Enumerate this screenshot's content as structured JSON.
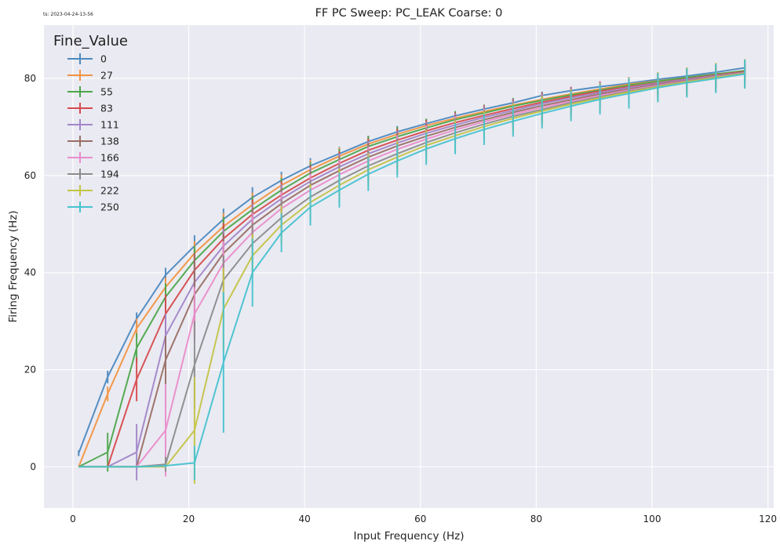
{
  "timestamp": "ts: 2023-04-24-13-56",
  "chart_data": {
    "type": "line",
    "title": "FF PC Sweep: PC_LEAK Coarse: 0",
    "xlabel": "Input Frequency (Hz)",
    "ylabel": "Firing Frequency (Hz)",
    "xlim": [
      -5,
      121
    ],
    "ylim": [
      -8.5,
      91
    ],
    "xticks": [
      0,
      20,
      40,
      60,
      80,
      100,
      120
    ],
    "yticks": [
      0,
      20,
      40,
      60,
      80
    ],
    "grid": true,
    "legend_title": "Fine_Value",
    "legend_position": "top-left",
    "x": [
      1,
      6,
      11,
      16,
      21,
      26,
      31,
      36,
      41,
      46,
      51,
      56,
      61,
      66,
      71,
      76,
      81,
      86,
      91,
      96,
      101,
      106,
      111,
      116
    ],
    "series": [
      {
        "name": "0",
        "color": "#4c8ac0",
        "values": [
          2.8,
          18.5,
          30.5,
          39.5,
          45.5,
          51.0,
          55.5,
          59.0,
          62.0,
          64.5,
          67.0,
          69.0,
          70.7,
          72.3,
          73.7,
          75.0,
          76.5,
          77.5,
          78.3,
          79.0,
          79.8,
          80.5,
          81.3,
          82.2
        ],
        "errors": [
          0.6,
          1.3,
          1.3,
          1.5,
          2.2,
          2.2,
          2.1,
          1.8,
          1.6,
          1.4,
          1.2,
          1.2,
          1.0,
          0.9,
          0.9,
          0.8,
          0.8,
          0.7,
          0.7,
          0.6,
          0.6,
          0.6,
          0.5,
          0.5
        ]
      },
      {
        "name": "27",
        "color": "#f39441",
        "values": [
          0,
          15.0,
          28.5,
          37.0,
          44.0,
          49.5,
          54.0,
          58.0,
          61.2,
          64.0,
          66.5,
          68.5,
          70.3,
          71.8,
          73.2,
          74.5,
          75.7,
          76.8,
          77.8,
          78.8,
          79.5,
          80.2,
          80.9,
          81.5
        ],
        "errors": [
          0,
          1.5,
          2.0,
          2.0,
          2.5,
          2.8,
          2.5,
          2.2,
          2.0,
          1.8,
          1.6,
          1.5,
          1.4,
          1.3,
          1.2,
          1.1,
          1.1,
          1.0,
          1.0,
          0.9,
          0.9,
          0.9,
          0.9,
          0.9
        ]
      },
      {
        "name": "55",
        "color": "#4ca74c",
        "values": [
          0,
          3.0,
          24.5,
          35.0,
          42.5,
          48.5,
          53.0,
          57.0,
          60.5,
          63.3,
          66.0,
          68.0,
          69.8,
          71.5,
          72.9,
          74.3,
          75.5,
          76.6,
          77.6,
          78.6,
          79.4,
          80.2,
          80.9,
          81.6
        ],
        "errors": [
          0,
          4.0,
          3.0,
          2.8,
          3.0,
          3.0,
          2.8,
          2.5,
          2.3,
          2.2,
          2.1,
          2.0,
          1.9,
          1.8,
          1.7,
          1.7,
          1.6,
          1.6,
          1.5,
          1.5,
          1.4,
          1.4,
          1.4,
          1.4
        ]
      },
      {
        "name": "83",
        "color": "#d64b4d",
        "values": [
          0,
          0,
          18.0,
          31.5,
          40.5,
          47.0,
          52.0,
          56.0,
          59.5,
          62.5,
          65.2,
          67.3,
          69.2,
          70.9,
          72.4,
          73.8,
          75.1,
          76.3,
          77.4,
          78.3,
          79.1,
          79.9,
          80.7,
          81.4
        ],
        "errors": [
          0,
          0,
          4.5,
          4.0,
          3.5,
          3.2,
          3.0,
          2.8,
          2.6,
          2.5,
          2.4,
          2.3,
          2.2,
          2.1,
          2.1,
          2.0,
          2.0,
          2.0,
          2.0,
          1.9,
          1.9,
          1.9,
          1.9,
          1.9
        ]
      },
      {
        "name": "111",
        "color": "#a285c9",
        "values": [
          0,
          0,
          3.0,
          27.0,
          38.0,
          45.5,
          51.0,
          55.2,
          58.8,
          61.8,
          64.5,
          66.7,
          68.7,
          70.4,
          72.0,
          73.4,
          74.8,
          76.0,
          77.1,
          78.1,
          79.0,
          79.8,
          80.6,
          81.3
        ],
        "errors": [
          0,
          0,
          5.8,
          4.5,
          4.0,
          3.5,
          3.2,
          3.0,
          2.8,
          2.7,
          2.6,
          2.5,
          2.4,
          2.4,
          2.3,
          2.3,
          2.2,
          2.2,
          2.2,
          2.2,
          2.1,
          2.1,
          2.1,
          2.1
        ]
      },
      {
        "name": "138",
        "color": "#9a6f66",
        "values": [
          0,
          0,
          0,
          22.0,
          35.5,
          44.0,
          49.8,
          54.2,
          58.0,
          61.0,
          63.8,
          66.1,
          68.1,
          69.9,
          71.5,
          73.0,
          74.4,
          75.6,
          76.8,
          77.8,
          78.8,
          79.6,
          80.5,
          81.3
        ],
        "errors": [
          0,
          0,
          0,
          5.0,
          8.5,
          4.0,
          3.5,
          3.2,
          3.0,
          2.9,
          2.8,
          2.7,
          2.6,
          2.6,
          2.5,
          2.5,
          2.5,
          2.4,
          2.4,
          2.4,
          2.4,
          2.3,
          2.3,
          2.3
        ]
      },
      {
        "name": "166",
        "color": "#ea8dcb",
        "values": [
          0,
          0,
          0,
          7.5,
          31.5,
          42.0,
          48.3,
          53.2,
          57.0,
          60.2,
          63.0,
          65.4,
          67.5,
          69.4,
          71.1,
          72.6,
          74.0,
          75.3,
          76.5,
          77.6,
          78.6,
          79.5,
          80.4,
          81.2
        ],
        "errors": [
          0,
          0,
          0,
          9.5,
          5.5,
          4.5,
          4.0,
          3.5,
          3.3,
          3.1,
          3.0,
          2.9,
          2.8,
          2.8,
          2.7,
          2.7,
          2.7,
          2.6,
          2.6,
          2.6,
          2.6,
          2.6,
          2.6,
          2.6
        ]
      },
      {
        "name": "194",
        "color": "#8c8c8c",
        "values": [
          0,
          0,
          0,
          0.5,
          21.0,
          38.5,
          46.0,
          51.3,
          55.6,
          59.0,
          62.0,
          64.5,
          66.8,
          68.8,
          70.6,
          72.2,
          73.6,
          75.0,
          76.2,
          77.4,
          78.4,
          79.4,
          80.3,
          81.1
        ],
        "errors": [
          0,
          0,
          0,
          1.5,
          9.0,
          5.0,
          4.2,
          3.8,
          3.5,
          3.3,
          3.2,
          3.1,
          3.0,
          3.0,
          2.9,
          2.9,
          2.9,
          2.8,
          2.8,
          2.8,
          2.8,
          2.8,
          2.8,
          2.8
        ]
      },
      {
        "name": "222",
        "color": "#c4c446",
        "values": [
          0,
          0,
          0,
          0,
          7.5,
          32.5,
          43.5,
          49.8,
          54.5,
          58.0,
          61.2,
          63.8,
          66.2,
          68.2,
          70.1,
          71.8,
          73.3,
          74.7,
          76.0,
          77.2,
          78.3,
          79.3,
          80.2,
          81.0
        ],
        "errors": [
          0,
          0,
          0,
          0,
          11.0,
          8.5,
          4.5,
          4.0,
          3.7,
          3.5,
          3.4,
          3.3,
          3.2,
          3.2,
          3.1,
          3.1,
          3.1,
          3.0,
          3.0,
          3.0,
          3.0,
          3.0,
          3.0,
          3.0
        ]
      },
      {
        "name": "250",
        "color": "#47c3d0",
        "values": [
          0,
          0,
          0,
          0.2,
          0.8,
          21.5,
          40.0,
          48.2,
          53.5,
          57.0,
          60.3,
          63.0,
          65.5,
          67.6,
          69.5,
          71.2,
          72.8,
          74.3,
          75.7,
          76.9,
          78.1,
          79.1,
          80.0,
          80.9
        ],
        "errors": [
          0,
          0,
          0,
          0.3,
          3.5,
          14.5,
          7.0,
          4.0,
          3.8,
          3.6,
          3.5,
          3.4,
          3.3,
          3.2,
          3.2,
          3.2,
          3.1,
          3.1,
          3.1,
          3.1,
          3.0,
          3.0,
          3.0,
          3.0
        ]
      }
    ]
  }
}
